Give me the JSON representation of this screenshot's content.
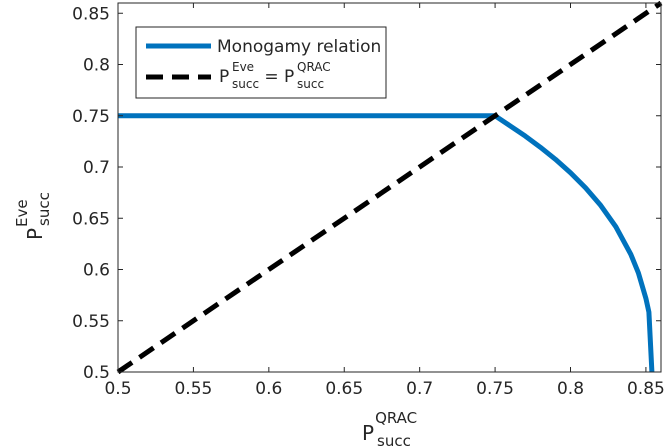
{
  "chart_data": {
    "type": "line",
    "xlabel": {
      "main": "P",
      "sub": "succ",
      "sup": "QRAC"
    },
    "ylabel": {
      "main": "P",
      "sub": "succ",
      "sup": "Eve"
    },
    "xlim": [
      0.5,
      0.86
    ],
    "ylim": [
      0.5,
      0.86
    ],
    "xticks": [
      0.5,
      0.55,
      0.6,
      0.65,
      0.7,
      0.75,
      0.8,
      0.85
    ],
    "xtick_labels": [
      "0.5",
      "0.55",
      "0.6",
      "0.65",
      "0.7",
      "0.75",
      "0.8",
      "0.85"
    ],
    "yticks": [
      0.5,
      0.55,
      0.6,
      0.65,
      0.7,
      0.75,
      0.8,
      0.85
    ],
    "ytick_labels": [
      "0.5",
      "0.55",
      "0.6",
      "0.65",
      "0.7",
      "0.75",
      "0.8",
      "0.85"
    ],
    "grid": false,
    "legend_placement": "top-left",
    "series": [
      {
        "name": "Monogamy relation",
        "color": "#0072BD",
        "style": "solid",
        "x": [
          0.5,
          0.75,
          0.76,
          0.77,
          0.78,
          0.79,
          0.8,
          0.81,
          0.82,
          0.83,
          0.84,
          0.845,
          0.85,
          0.852,
          0.854
        ],
        "y": [
          0.75,
          0.75,
          0.7401,
          0.7301,
          0.7193,
          0.7075,
          0.6944,
          0.6796,
          0.6625,
          0.6418,
          0.6148,
          0.5967,
          0.5718,
          0.5584,
          0.5
        ]
      },
      {
        "name": "P_succ^Eve = P_succ^QRAC",
        "color": "#000000",
        "style": "dashed",
        "x": [
          0.5,
          0.86
        ],
        "y": [
          0.5,
          0.86
        ]
      }
    ],
    "legend": [
      {
        "label": "Monogamy relation"
      },
      {
        "parts": [
          {
            "t": "P",
            "k": "main"
          },
          {
            "t": "succ",
            "k": "sub"
          },
          {
            "t": "Eve",
            "k": "sup"
          },
          {
            "t": " = ",
            "k": "main"
          },
          {
            "t": "P",
            "k": "main"
          },
          {
            "t": "succ",
            "k": "sub"
          },
          {
            "t": "QRAC",
            "k": "sup"
          }
        ]
      }
    ]
  }
}
